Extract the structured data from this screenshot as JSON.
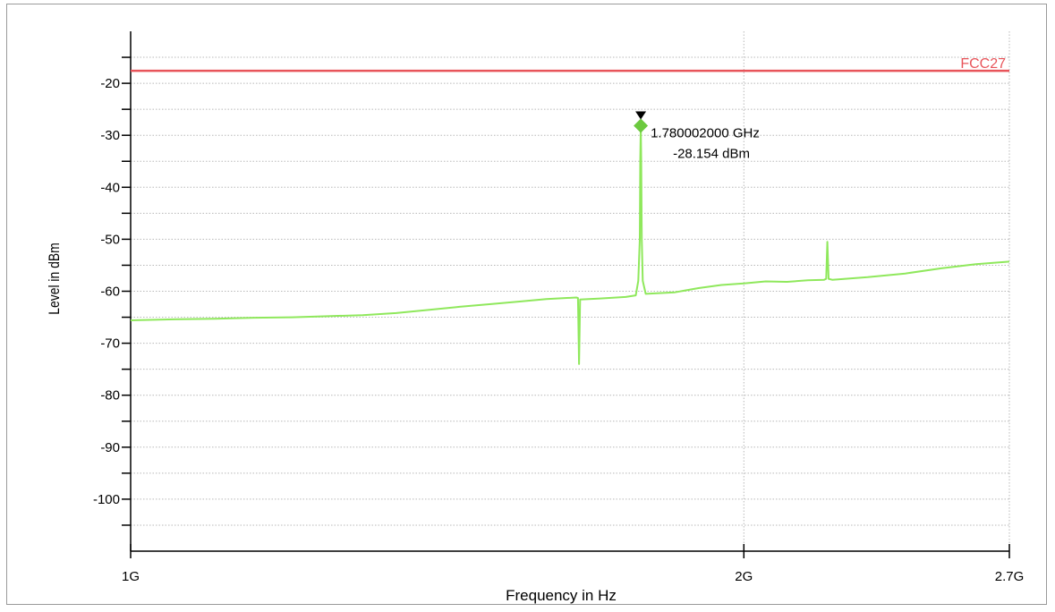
{
  "chart_data": {
    "type": "line",
    "xlabel": "Frequency in Hz",
    "ylabel": "Level in dBm",
    "x_scale": "log",
    "xlim": [
      1000000000,
      2700000000
    ],
    "ylim": [
      -110,
      -10
    ],
    "x_ticks": [
      {
        "value": 1000000000,
        "label": "1G"
      },
      {
        "value": 2000000000,
        "label": "2G"
      },
      {
        "value": 2700000000,
        "label": "2.7G"
      }
    ],
    "y_ticks": [
      {
        "value": -20,
        "label": "-20"
      },
      {
        "value": -30,
        "label": "-30"
      },
      {
        "value": -40,
        "label": "-40"
      },
      {
        "value": -50,
        "label": "-50"
      },
      {
        "value": -60,
        "label": "-60"
      },
      {
        "value": -70,
        "label": "-70"
      },
      {
        "value": -80,
        "label": "-80"
      },
      {
        "value": -90,
        "label": "-90"
      },
      {
        "value": -100,
        "label": "-100"
      }
    ],
    "grid": true,
    "limit_line": {
      "name": "FCC27",
      "value": -17.6,
      "color": "#e8545a"
    },
    "series": [
      {
        "color": "#8fe85c",
        "points": [
          [
            1000000000,
            -65.6
          ],
          [
            1050000000,
            -65.4
          ],
          [
            1100000000,
            -65.3
          ],
          [
            1150000000,
            -65.1
          ],
          [
            1200000000,
            -65.0
          ],
          [
            1250000000,
            -64.8
          ],
          [
            1300000000,
            -64.6
          ],
          [
            1350000000,
            -64.2
          ],
          [
            1400000000,
            -63.6
          ],
          [
            1450000000,
            -63.0
          ],
          [
            1500000000,
            -62.5
          ],
          [
            1550000000,
            -62.0
          ],
          [
            1600000000,
            -61.5
          ],
          [
            1655000000,
            -61.2
          ],
          [
            1658000000,
            -61.3
          ],
          [
            1660000000,
            -74.0
          ],
          [
            1662000000,
            -61.6
          ],
          [
            1700000000,
            -61.4
          ],
          [
            1750000000,
            -61.1
          ],
          [
            1770000000,
            -60.8
          ],
          [
            1775000000,
            -58.0
          ],
          [
            1778000000,
            -50.0
          ],
          [
            1779000000,
            -35.0
          ],
          [
            1780002000,
            -28.154
          ],
          [
            1781000000,
            -35.0
          ],
          [
            1782000000,
            -50.0
          ],
          [
            1784000000,
            -58.0
          ],
          [
            1790000000,
            -60.5
          ],
          [
            1850000000,
            -60.2
          ],
          [
            1900000000,
            -59.4
          ],
          [
            1950000000,
            -58.8
          ],
          [
            2000000000,
            -58.5
          ],
          [
            2050000000,
            -58.1
          ],
          [
            2100000000,
            -58.2
          ],
          [
            2150000000,
            -57.9
          ],
          [
            2190000000,
            -57.8
          ],
          [
            2195000000,
            -57.6
          ],
          [
            2198000000,
            -50.5
          ],
          [
            2201000000,
            -57.6
          ],
          [
            2210000000,
            -57.8
          ],
          [
            2300000000,
            -57.3
          ],
          [
            2400000000,
            -56.6
          ],
          [
            2500000000,
            -55.6
          ],
          [
            2600000000,
            -54.8
          ],
          [
            2700000000,
            -54.3
          ]
        ]
      }
    ],
    "marker": {
      "x": 1780002000,
      "y": -28.154,
      "freq_label": "1.780002000 GHz",
      "level_label": "-28.154 dBm"
    }
  }
}
